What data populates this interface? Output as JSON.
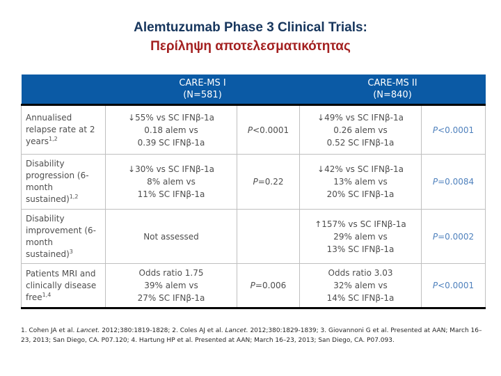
{
  "title": {
    "line1": "Alemtuzumab Phase 3 Clinical Trials:",
    "line2": "Περίληψη αποτελεσματικότητας"
  },
  "colors": {
    "title_blue": "#17365D",
    "title_red": "#A32020",
    "header_bg": "#0B5AA5",
    "header_text": "#FFFFFF",
    "body_text": "#4D4D4D",
    "pvalue_blue": "#4F81BD",
    "grid_line": "#BFBFBF",
    "heavy_border": "#000000"
  },
  "table": {
    "group_headers": [
      {
        "lines": [
          "CARE-MS I",
          "(N=581)"
        ]
      },
      {
        "lines": [
          "CARE-MS II",
          "(N=840)"
        ]
      }
    ],
    "rows": [
      {
        "label": "Annualised relapse rate at 2 years",
        "label_sup": "1,2",
        "cms1_lines": [
          "↓55% vs SC IFNβ-1a",
          "0.18 alem vs",
          "0.39 SC IFNβ-1a"
        ],
        "cms1_p": "P<0.0001",
        "cms2_lines": [
          "↓49% vs SC IFNβ-1a",
          "0.26 alem vs",
          "0.52 SC IFNβ-1a"
        ],
        "cms2_p": "P<0.0001"
      },
      {
        "label": "Disability progression (6-month sustained)",
        "label_sup": "1,2",
        "cms1_lines": [
          "↓30% vs SC IFNβ-1a",
          "8% alem vs",
          "11% SC IFNβ-1a"
        ],
        "cms1_p": "P=0.22",
        "cms2_lines": [
          "↓42% vs SC IFNβ-1a",
          "13% alem vs",
          "20% SC IFNβ-1a"
        ],
        "cms2_p": "P=0.0084"
      },
      {
        "label": "Disability improvement (6-month sustained)",
        "label_sup": "3",
        "cms1_lines": [
          "Not assessed"
        ],
        "cms1_p": "",
        "cms2_lines": [
          "↑157% vs SC IFNβ-1a",
          "29% alem vs",
          "13% SC IFNβ-1a"
        ],
        "cms2_p": "P=0.0002"
      },
      {
        "label": "Patients MRI and clinically disease free",
        "label_sup": "1,4",
        "cms1_lines": [
          "Odds ratio 1.75",
          "39% alem vs",
          "27% SC IFNβ-1a"
        ],
        "cms1_p": "P=0.006",
        "cms2_lines": [
          "Odds ratio 3.03",
          "32% alem vs",
          "14% SC IFNβ-1a"
        ],
        "cms2_p": "P<0.0001"
      }
    ]
  },
  "footnote": {
    "seg1": "1. Cohen JA et al. ",
    "lancet1": "Lancet.",
    "seg2": " 2012;380:1819-1828; 2. Coles AJ et al. ",
    "lancet2": "Lancet.",
    "seg3": " 2012;380:1829-1839; 3. Giovannoni G et al. Presented at AAN; March 16–23, 2013; San Diego, CA. P07.120; 4. Hartung HP et al. Presented at AAN; March 16–23, 2013; San Diego, CA. P07.093."
  }
}
